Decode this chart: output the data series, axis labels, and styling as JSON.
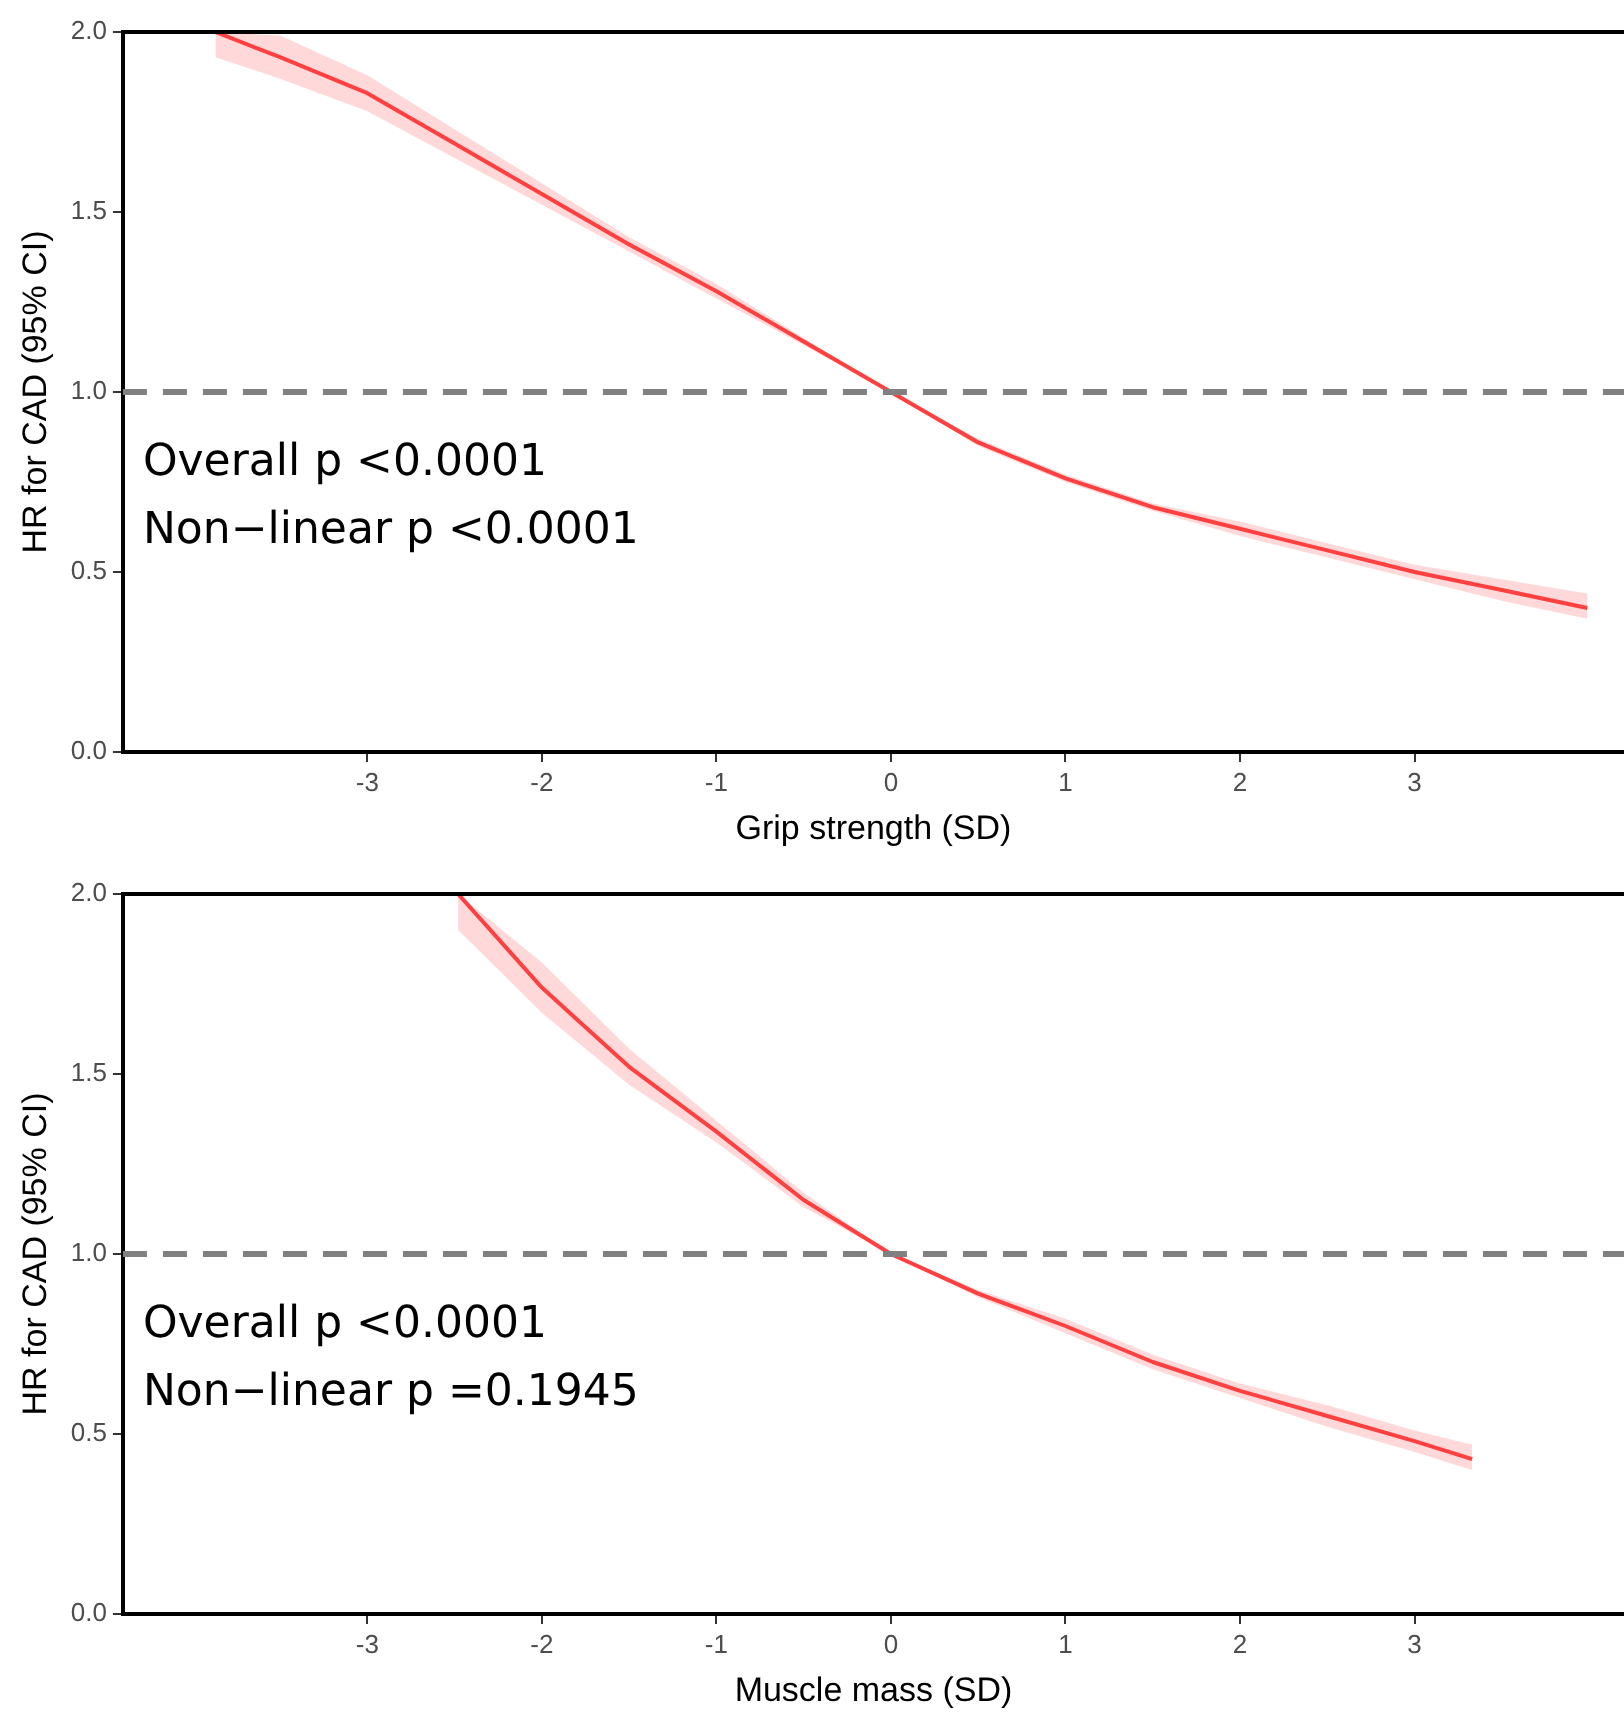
{
  "chart_data": [
    {
      "type": "line",
      "xlabel": "Grip strength (SD)",
      "ylabel": "HR for CAD (95% CI)",
      "xlim": [
        -4.4,
        4.2
      ],
      "ylim": [
        0,
        2
      ],
      "xticks": [
        -3,
        -2,
        -1,
        0,
        1,
        2,
        3
      ],
      "yticks": [
        {
          "value": 0,
          "label": "0.0"
        },
        {
          "value": 0.5,
          "label": "0.5"
        },
        {
          "value": 1,
          "label": "1.0"
        },
        {
          "value": 1.5,
          "label": "1.5"
        },
        {
          "value": 2,
          "label": "2.0"
        }
      ],
      "grid": false,
      "legend": false,
      "marker": "none",
      "line_style": "solid",
      "ref_lines": [
        {
          "axis": "y",
          "value": 1,
          "color": "#808080",
          "line_style": "dashed"
        }
      ],
      "annotations": [
        "Overall p <0.0001",
        "Non−linear p <0.0001"
      ],
      "series": [
        {
          "color": "#ff4040",
          "x": [
            -3.87,
            -3.5,
            -3,
            -2.5,
            -2,
            -1.5,
            -1,
            -0.5,
            0,
            0.5,
            1,
            1.5,
            2,
            2.5,
            3,
            3.5,
            3.99
          ],
          "values": [
            2.0,
            1.93,
            1.83,
            1.69,
            1.55,
            1.41,
            1.28,
            1.14,
            1.0,
            0.86,
            0.76,
            0.68,
            0.62,
            0.56,
            0.5,
            0.45,
            0.4
          ],
          "lower": [
            1.93,
            1.87,
            1.78,
            1.65,
            1.52,
            1.39,
            1.26,
            1.13,
            1.0,
            0.85,
            0.75,
            0.67,
            0.6,
            0.54,
            0.48,
            0.42,
            0.37
          ],
          "upper": [
            2.0,
            1.99,
            1.88,
            1.73,
            1.58,
            1.43,
            1.3,
            1.15,
            1.0,
            0.87,
            0.77,
            0.69,
            0.64,
            0.58,
            0.52,
            0.48,
            0.44
          ]
        }
      ]
    },
    {
      "type": "line",
      "xlabel": "Muscle mass (SD)",
      "ylabel": "HR for CAD (95% CI)",
      "xlim": [
        -4.4,
        4.2
      ],
      "ylim": [
        0,
        2
      ],
      "xticks": [
        -3,
        -2,
        -1,
        0,
        1,
        2,
        3
      ],
      "yticks": [
        {
          "value": 0,
          "label": "0.0"
        },
        {
          "value": 0.5,
          "label": "0.5"
        },
        {
          "value": 1,
          "label": "1.0"
        },
        {
          "value": 1.5,
          "label": "1.5"
        },
        {
          "value": 2,
          "label": "2.0"
        }
      ],
      "grid": false,
      "legend": false,
      "marker": "none",
      "line_style": "solid",
      "ref_lines": [
        {
          "axis": "y",
          "value": 1,
          "color": "#808080",
          "line_style": "dashed"
        }
      ],
      "annotations": [
        "Overall p <0.0001",
        "Non−linear p =0.1945"
      ],
      "series": [
        {
          "color": "#ff4040",
          "x": [
            -2.48,
            -2,
            -1.5,
            -1,
            -0.5,
            0,
            0.5,
            1,
            1.5,
            2,
            2.5,
            3,
            3.33
          ],
          "values": [
            2.0,
            1.74,
            1.52,
            1.34,
            1.15,
            1.0,
            0.89,
            0.8,
            0.7,
            0.62,
            0.55,
            0.48,
            0.43
          ],
          "lower": [
            1.9,
            1.67,
            1.47,
            1.31,
            1.13,
            1.0,
            0.88,
            0.78,
            0.68,
            0.6,
            0.52,
            0.45,
            0.4
          ],
          "upper": [
            2.0,
            1.81,
            1.57,
            1.37,
            1.17,
            1.0,
            0.9,
            0.82,
            0.72,
            0.64,
            0.58,
            0.51,
            0.47
          ]
        }
      ]
    }
  ]
}
